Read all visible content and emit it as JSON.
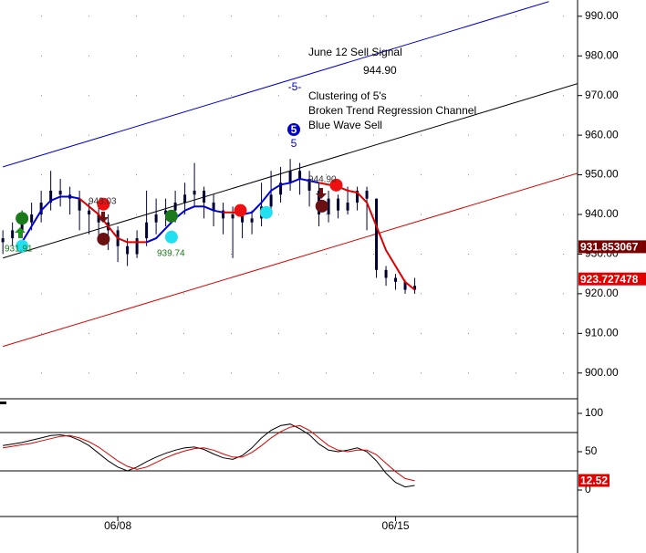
{
  "chart_data": [
    {
      "type": "candlestick",
      "xlim": [
        -0.3,
        60
      ],
      "ylim": [
        893.5,
        994.1
      ],
      "yticks": [
        {
          "value": 900,
          "label": "900.00"
        },
        {
          "value": 910,
          "label": "910.00"
        },
        {
          "value": 920,
          "label": "920.00"
        },
        {
          "value": 930,
          "label": "930.00"
        },
        {
          "value": 940,
          "label": "940.00"
        },
        {
          "value": 950,
          "label": "950.00"
        },
        {
          "value": 960,
          "label": "960.00"
        },
        {
          "value": 970,
          "label": "970.00"
        },
        {
          "value": 980,
          "label": "980.00"
        },
        {
          "value": 990,
          "label": "990.00"
        }
      ],
      "grid": true,
      "color": "#000033",
      "open": [
        933,
        934,
        936,
        938,
        940,
        943,
        946,
        945,
        944,
        941,
        940,
        938,
        936,
        932,
        930,
        934,
        938,
        940,
        941,
        943,
        945,
        946,
        943,
        941,
        939,
        940,
        938,
        939,
        942,
        945,
        948,
        951,
        949,
        946,
        940,
        944,
        941,
        943,
        946,
        944,
        926,
        924,
        923,
        921
      ],
      "high": [
        936,
        938,
        941,
        943,
        946,
        951,
        949,
        947,
        946,
        943,
        942,
        940,
        937,
        934,
        936,
        946,
        944,
        944,
        946,
        948,
        953,
        947,
        945,
        943,
        942,
        941,
        941,
        948,
        951,
        952,
        954,
        953,
        951,
        948,
        946,
        945,
        947,
        947,
        947,
        944,
        927,
        925,
        923.5,
        924
      ],
      "low": [
        930,
        932,
        934,
        936,
        938,
        941,
        942,
        940,
        936,
        935,
        934,
        931,
        928,
        927,
        929,
        932,
        935,
        937,
        938,
        940,
        942,
        939,
        937,
        935,
        929,
        934,
        935,
        937,
        940,
        943,
        946,
        945,
        942,
        937,
        938,
        939,
        940,
        941,
        936,
        924,
        922,
        921,
        920,
        920
      ],
      "close": [
        934,
        936,
        938,
        940,
        943,
        946,
        945,
        944,
        941,
        940,
        938,
        936,
        932,
        930,
        934,
        938,
        940,
        941,
        943,
        945,
        946,
        943,
        941,
        939,
        940,
        938,
        939,
        942,
        945,
        948,
        951,
        949,
        946,
        940,
        944,
        941,
        943,
        946,
        944,
        926,
        924,
        923,
        921,
        922
      ],
      "series": [
        {
          "color": "#0000dd",
          "values": [
            null,
            null,
            933,
            937,
            941,
            943.5,
            944.5,
            944.5,
            944,
            null,
            null,
            null,
            null,
            null,
            null,
            933,
            934,
            936.5,
            939,
            941,
            942,
            942,
            941,
            940.5,
            null,
            940,
            940.5,
            943,
            946,
            947.5,
            948,
            949,
            948.5,
            948,
            null,
            null,
            null,
            null,
            null,
            null,
            null,
            null,
            null,
            null
          ]
        },
        {
          "color": "#dd0000",
          "values": [
            null,
            null,
            null,
            null,
            null,
            null,
            null,
            null,
            944,
            942,
            940,
            937,
            934,
            933,
            933,
            933,
            null,
            null,
            null,
            null,
            null,
            null,
            null,
            940.5,
            940.5,
            940,
            null,
            null,
            null,
            null,
            null,
            null,
            null,
            948,
            947.5,
            947,
            946,
            945.5,
            943,
            937,
            931,
            927,
            923,
            921
          ]
        }
      ],
      "channels": [
        {
          "color": "#0000dd",
          "x": [
            0,
            57
          ],
          "values": [
            952,
            993.7
          ]
        },
        {
          "color": "#000000",
          "x": [
            0,
            60
          ],
          "values": [
            929,
            973
          ]
        },
        {
          "color": "#dd0000",
          "x": [
            0,
            60
          ],
          "values": [
            906.7,
            950.4
          ]
        }
      ],
      "signals": [
        {
          "x": 2,
          "value": 939,
          "color": "#1a7a1a"
        },
        {
          "x": 2,
          "value": 932,
          "color": "#22e0f0"
        },
        {
          "x": 10.5,
          "value": 942.6,
          "color": "#ee1111"
        },
        {
          "x": 10.5,
          "value": 933.8,
          "color": "#6b1010"
        },
        {
          "x": 17.6,
          "value": 939.6,
          "color": "#1a7a1a"
        },
        {
          "x": 17.6,
          "value": 934.3,
          "color": "#22e0f0"
        },
        {
          "x": 24.8,
          "value": 941,
          "color": "#ee1111"
        },
        {
          "x": 27.5,
          "value": 940.5,
          "color": "#22e0f0"
        },
        {
          "x": 33.3,
          "value": 942.1,
          "color": "#6b1010"
        },
        {
          "x": 34.8,
          "value": 947.4,
          "color": "#ee1111"
        }
      ],
      "price_markers": [
        {
          "value": 931.853067,
          "color": "#7a0000"
        },
        {
          "value": 923.727478,
          "color": "#e00000"
        }
      ],
      "annotations": [
        "June 12 Sell Signal",
        "944.90",
        "-5-",
        "Clustering of 5's",
        "Broken Trend Regression Channel",
        "Blue Wave Sell",
        "5",
        "5",
        "943.03",
        "944.90",
        "931.91",
        "939.74"
      ]
    },
    {
      "type": "line",
      "xlim": [
        -0.3,
        60
      ],
      "ylim": [
        -34.5,
        119
      ],
      "yticks": [
        0,
        50,
        100
      ],
      "hlines": [
        25,
        75
      ],
      "xticks": [
        {
          "value": 12,
          "label": "06/08"
        },
        {
          "value": 41,
          "label": "06/15"
        }
      ],
      "series": [
        {
          "color": "#000000",
          "values": [
            58,
            60,
            62,
            65,
            68,
            71,
            72,
            70,
            65,
            58,
            48,
            38,
            30,
            25,
            30,
            37,
            43,
            48,
            52,
            55,
            56,
            53,
            47,
            42,
            40,
            45,
            55,
            68,
            78,
            84,
            86,
            80,
            72,
            60,
            52,
            50,
            52,
            55,
            50,
            38,
            22,
            10,
            4,
            6
          ]
        },
        {
          "color": "#dd0000",
          "values": [
            55,
            57,
            59,
            61,
            64,
            67,
            70,
            71,
            68,
            63,
            56,
            47,
            38,
            31,
            27,
            30,
            36,
            42,
            47,
            51,
            54,
            55,
            52,
            47,
            43,
            43,
            49,
            58,
            68,
            76,
            82,
            84,
            78,
            68,
            58,
            52,
            50,
            52,
            52,
            46,
            35,
            24,
            15,
            12
          ]
        }
      ],
      "price_markers": [
        {
          "value": 12.52,
          "color": "#e00000"
        }
      ]
    }
  ]
}
